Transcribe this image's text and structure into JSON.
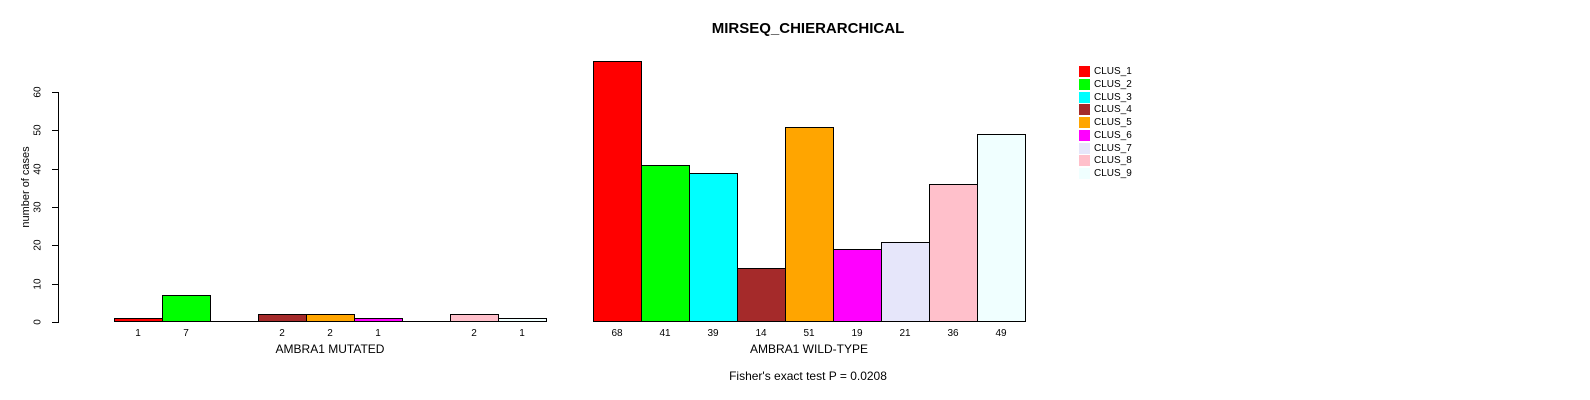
{
  "chart_data": {
    "type": "bar",
    "title": "MIRSEQ_CHIERARCHICAL",
    "ylabel": "number of cases",
    "ylim": [
      0,
      60
    ],
    "yticks": [
      0,
      10,
      20,
      30,
      40,
      50,
      60
    ],
    "grid": false,
    "legend_position": "top-right",
    "bar_border_color": "#000000",
    "clusters": [
      "CLUS_1",
      "CLUS_2",
      "CLUS_3",
      "CLUS_4",
      "CLUS_5",
      "CLUS_6",
      "CLUS_7",
      "CLUS_8",
      "CLUS_9"
    ],
    "colors": [
      "#FF0000",
      "#00FF00",
      "#00FFFF",
      "#A52A2A",
      "#FFA500",
      "#FF00FF",
      "#E6E6FA",
      "#FFC0CB",
      "#F0FFFF"
    ],
    "groups": [
      {
        "label": "AMBRA1 MUTATED",
        "values": [
          1,
          7,
          0,
          2,
          2,
          1,
          0,
          2,
          1
        ]
      },
      {
        "label": "AMBRA1 WILD-TYPE",
        "values": [
          68,
          41,
          39,
          14,
          51,
          19,
          21,
          36,
          49
        ]
      }
    ],
    "footnote": "Fisher's exact test P = 0.0208"
  }
}
